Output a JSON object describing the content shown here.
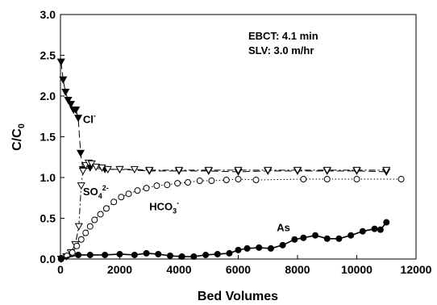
{
  "chart_data": {
    "type": "scatter",
    "xlabel": "Bed Volumes",
    "ylabel_main": "C/C",
    "ylabel_sub": "0",
    "xlim": [
      0,
      12000
    ],
    "ylim": [
      0,
      3.0
    ],
    "x_ticks": [
      "0",
      "2000",
      "4000",
      "6000",
      "8000",
      "10000",
      "12000"
    ],
    "y_ticks": [
      "0.0",
      "0.5",
      "1.0",
      "1.5",
      "2.0",
      "2.5",
      "3.0"
    ],
    "legend_placement": "none",
    "grid": false,
    "info_lines": [
      "EBCT: 4.1 min",
      "SLV: 3.0 m/hr"
    ],
    "series": [
      {
        "name": "Cl-",
        "marker": "filled-triangle-down",
        "line": "long-dash",
        "points": [
          [
            20,
            2.42
          ],
          [
            90,
            2.2
          ],
          [
            170,
            2.05
          ],
          [
            260,
            1.95
          ],
          [
            350,
            1.9
          ],
          [
            440,
            1.83
          ],
          [
            520,
            1.83
          ],
          [
            600,
            1.73
          ],
          [
            680,
            1.3
          ],
          [
            760,
            1.1
          ],
          [
            1000,
            1.12
          ],
          [
            1500,
            1.1
          ],
          [
            2000,
            1.1
          ],
          [
            3000,
            1.08
          ],
          [
            4000,
            1.08
          ],
          [
            5000,
            1.08
          ],
          [
            6000,
            1.07
          ],
          [
            7000,
            1.08
          ],
          [
            8000,
            1.08
          ],
          [
            9000,
            1.08
          ],
          [
            10000,
            1.08
          ],
          [
            11000,
            1.07
          ]
        ]
      },
      {
        "name": "SO42-",
        "marker": "open-triangle-down",
        "line": "dash-dot",
        "points": [
          [
            20,
            0.0
          ],
          [
            200,
            0.03
          ],
          [
            350,
            0.08
          ],
          [
            500,
            0.18
          ],
          [
            620,
            0.4
          ],
          [
            700,
            0.9
          ],
          [
            760,
            1.08
          ],
          [
            850,
            1.15
          ],
          [
            950,
            1.18
          ],
          [
            1050,
            1.17
          ],
          [
            1200,
            1.13
          ],
          [
            1400,
            1.12
          ],
          [
            1600,
            1.1
          ],
          [
            2000,
            1.1
          ],
          [
            2500,
            1.1
          ],
          [
            3000,
            1.09
          ],
          [
            4000,
            1.09
          ],
          [
            5000,
            1.09
          ],
          [
            6000,
            1.09
          ],
          [
            7000,
            1.09
          ],
          [
            8000,
            1.09
          ],
          [
            9000,
            1.09
          ],
          [
            10000,
            1.09
          ],
          [
            11000,
            1.09
          ]
        ]
      },
      {
        "name": "HCO3-",
        "marker": "open-circle",
        "line": "dotted",
        "points": [
          [
            30,
            0.01
          ],
          [
            220,
            0.04
          ],
          [
            400,
            0.08
          ],
          [
            550,
            0.16
          ],
          [
            700,
            0.24
          ],
          [
            850,
            0.32
          ],
          [
            1000,
            0.4
          ],
          [
            1150,
            0.48
          ],
          [
            1350,
            0.55
          ],
          [
            1550,
            0.62
          ],
          [
            1800,
            0.7
          ],
          [
            2050,
            0.76
          ],
          [
            2300,
            0.8
          ],
          [
            2600,
            0.84
          ],
          [
            2900,
            0.87
          ],
          [
            3250,
            0.9
          ],
          [
            3600,
            0.91
          ],
          [
            3950,
            0.93
          ],
          [
            4300,
            0.94
          ],
          [
            4700,
            0.96
          ],
          [
            5100,
            0.96
          ],
          [
            5600,
            0.97
          ],
          [
            6000,
            0.98
          ],
          [
            6600,
            0.97
          ],
          [
            8200,
            0.98
          ],
          [
            9000,
            0.98
          ],
          [
            10000,
            0.98
          ],
          [
            11500,
            0.98
          ]
        ]
      },
      {
        "name": "As",
        "marker": "filled-circle",
        "line": "solid",
        "points": [
          [
            20,
            0.0
          ],
          [
            600,
            0.05
          ],
          [
            1000,
            0.05
          ],
          [
            1500,
            0.05
          ],
          [
            2000,
            0.06
          ],
          [
            2500,
            0.05
          ],
          [
            2900,
            0.07
          ],
          [
            3300,
            0.06
          ],
          [
            3700,
            0.04
          ],
          [
            4100,
            0.03
          ],
          [
            4500,
            0.03
          ],
          [
            4900,
            0.05
          ],
          [
            5300,
            0.06
          ],
          [
            5700,
            0.07
          ],
          [
            6000,
            0.11
          ],
          [
            6300,
            0.13
          ],
          [
            6700,
            0.14
          ],
          [
            7100,
            0.13
          ],
          [
            7500,
            0.17
          ],
          [
            7900,
            0.24
          ],
          [
            8200,
            0.26
          ],
          [
            8600,
            0.29
          ],
          [
            9000,
            0.25
          ],
          [
            9400,
            0.25
          ],
          [
            9800,
            0.29
          ],
          [
            10200,
            0.34
          ],
          [
            10600,
            0.37
          ],
          [
            10800,
            0.36
          ],
          [
            11000,
            0.45
          ]
        ]
      }
    ],
    "annotations": [
      {
        "text": "Cl",
        "sup": "-",
        "sub": "",
        "at": [
          760,
          1.67
        ]
      },
      {
        "text": "SO",
        "sub": "4",
        "sup": "2-",
        "at": [
          760,
          0.78
        ]
      },
      {
        "text": "HCO",
        "sub": "3",
        "sup": "-",
        "at": [
          3000,
          0.6
        ]
      },
      {
        "text": "As",
        "sub": "",
        "sup": "",
        "at": [
          7300,
          0.34
        ]
      }
    ]
  }
}
